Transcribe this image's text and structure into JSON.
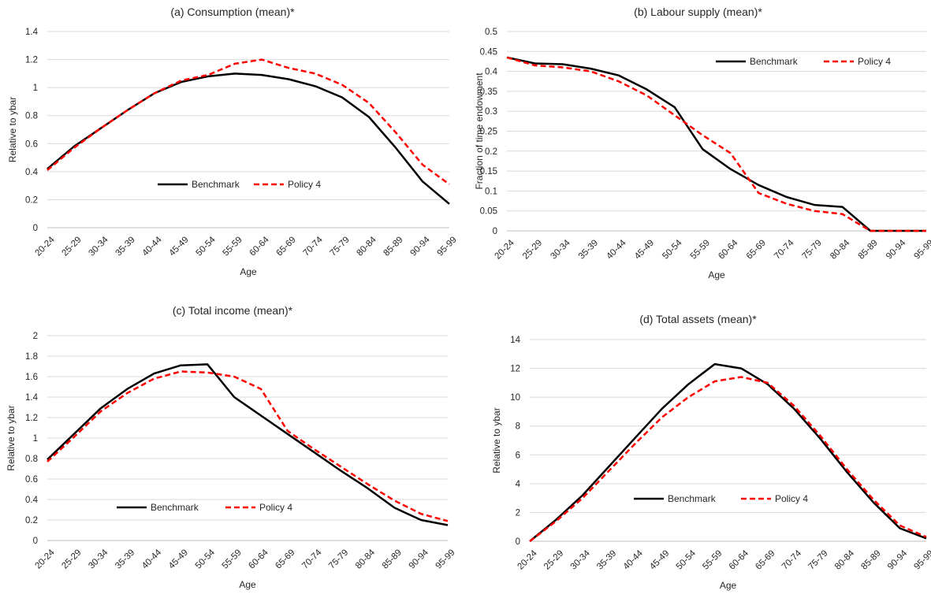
{
  "chart_data": [
    {
      "type": "line",
      "title": "(a) Consumption  (mean)*",
      "xlabel": "Age",
      "ylabel": "Relative to ybar",
      "ylim": [
        0,
        1.4
      ],
      "yticks": [
        0,
        0.2,
        0.4,
        0.6,
        0.8,
        1,
        1.2,
        1.4
      ],
      "grid": true,
      "legend_position": "lower-center",
      "categories": [
        "20-24",
        "25-29",
        "30-34",
        "35-39",
        "40-44",
        "45-49",
        "50-54",
        "55-59",
        "60-64",
        "65-69",
        "70-74",
        "75-79",
        "80-84",
        "85-89",
        "90-94",
        "95-99"
      ],
      "series": [
        {
          "name": "Benchmark",
          "color": "#000000",
          "dash": "solid",
          "values": [
            0.42,
            0.58,
            0.71,
            0.84,
            0.96,
            1.04,
            1.08,
            1.1,
            1.09,
            1.06,
            1.01,
            0.93,
            0.79,
            0.57,
            0.33,
            0.17
          ]
        },
        {
          "name": "Policy 4",
          "color": "#ff0000",
          "dash": "dashed",
          "values": [
            0.41,
            0.57,
            0.71,
            0.84,
            0.96,
            1.05,
            1.09,
            1.17,
            1.2,
            1.14,
            1.1,
            1.02,
            0.89,
            0.68,
            0.45,
            0.31
          ]
        }
      ]
    },
    {
      "type": "line",
      "title": "(b) Labour supply  (mean)*",
      "xlabel": "Age",
      "ylabel": "Fraction of time endowment",
      "ylim": [
        0,
        0.5
      ],
      "yticks": [
        0,
        0.05,
        0.1,
        0.15,
        0.2,
        0.25,
        0.3,
        0.35,
        0.4,
        0.45,
        0.5
      ],
      "grid": true,
      "legend_position": "top-right",
      "categories": [
        "20-24",
        "25-29",
        "30-34",
        "35-39",
        "40-44",
        "45-49",
        "50-54",
        "55-59",
        "60-64",
        "65-69",
        "70-74",
        "75-79",
        "80-84",
        "85-89",
        "90-94",
        "95-99"
      ],
      "series": [
        {
          "name": "Benchmark",
          "color": "#000000",
          "dash": "solid",
          "values": [
            0.435,
            0.42,
            0.418,
            0.407,
            0.39,
            0.355,
            0.31,
            0.205,
            0.155,
            0.115,
            0.085,
            0.065,
            0.06,
            0.0,
            0.0,
            0.0
          ]
        },
        {
          "name": "Policy 4",
          "color": "#ff0000",
          "dash": "dashed",
          "values": [
            0.435,
            0.415,
            0.41,
            0.4,
            0.375,
            0.34,
            0.29,
            0.24,
            0.195,
            0.095,
            0.068,
            0.05,
            0.042,
            0.0,
            0.0,
            0.0
          ]
        }
      ]
    },
    {
      "type": "line",
      "title": "(c) Total income  (mean)*",
      "xlabel": "Age",
      "ylabel": "Relative to ybar",
      "ylim": [
        0,
        2
      ],
      "yticks": [
        0,
        0.2,
        0.4,
        0.6,
        0.8,
        1,
        1.2,
        1.4,
        1.6,
        1.8,
        2
      ],
      "grid": true,
      "legend_position": "lower-center",
      "categories": [
        "20-24",
        "25-29",
        "30-34",
        "35-39",
        "40-44",
        "45-49",
        "50-54",
        "55-59",
        "60-64",
        "65-69",
        "70-74",
        "75-79",
        "80-84",
        "85-89",
        "90-94",
        "95-99"
      ],
      "series": [
        {
          "name": "Benchmark",
          "color": "#000000",
          "dash": "solid",
          "values": [
            0.79,
            1.04,
            1.29,
            1.48,
            1.63,
            1.71,
            1.72,
            1.4,
            1.22,
            1.04,
            0.86,
            0.68,
            0.51,
            0.32,
            0.2,
            0.15
          ]
        },
        {
          "name": "Policy 4",
          "color": "#ff0000",
          "dash": "dashed",
          "values": [
            0.77,
            1.01,
            1.26,
            1.44,
            1.58,
            1.65,
            1.64,
            1.6,
            1.48,
            1.07,
            0.89,
            0.72,
            0.55,
            0.39,
            0.26,
            0.19
          ]
        }
      ]
    },
    {
      "type": "line",
      "title": "(d) Total assets (mean)*",
      "xlabel": "Age",
      "ylabel": "Relative to ybar",
      "ylim": [
        0,
        14
      ],
      "yticks": [
        0,
        2,
        4,
        6,
        8,
        10,
        12,
        14
      ],
      "grid": true,
      "legend_position": "lower-center",
      "categories": [
        "20-24",
        "25-29",
        "30-34",
        "35-39",
        "40-44",
        "45-49",
        "50-54",
        "55-59",
        "60-64",
        "65-69",
        "70-74",
        "75-79",
        "80-84",
        "85-89",
        "90-94",
        "95-99"
      ],
      "series": [
        {
          "name": "Benchmark",
          "color": "#000000",
          "dash": "solid",
          "values": [
            0.0,
            1.5,
            3.2,
            5.2,
            7.2,
            9.2,
            10.9,
            12.3,
            12.0,
            10.9,
            9.2,
            7.1,
            4.8,
            2.7,
            0.9,
            0.2
          ]
        },
        {
          "name": "Policy 4",
          "color": "#ff0000",
          "dash": "dashed",
          "values": [
            0.0,
            1.4,
            3.0,
            4.9,
            6.8,
            8.6,
            10.0,
            11.1,
            11.4,
            11.0,
            9.4,
            7.3,
            5.0,
            2.9,
            1.1,
            0.3
          ]
        }
      ]
    }
  ]
}
